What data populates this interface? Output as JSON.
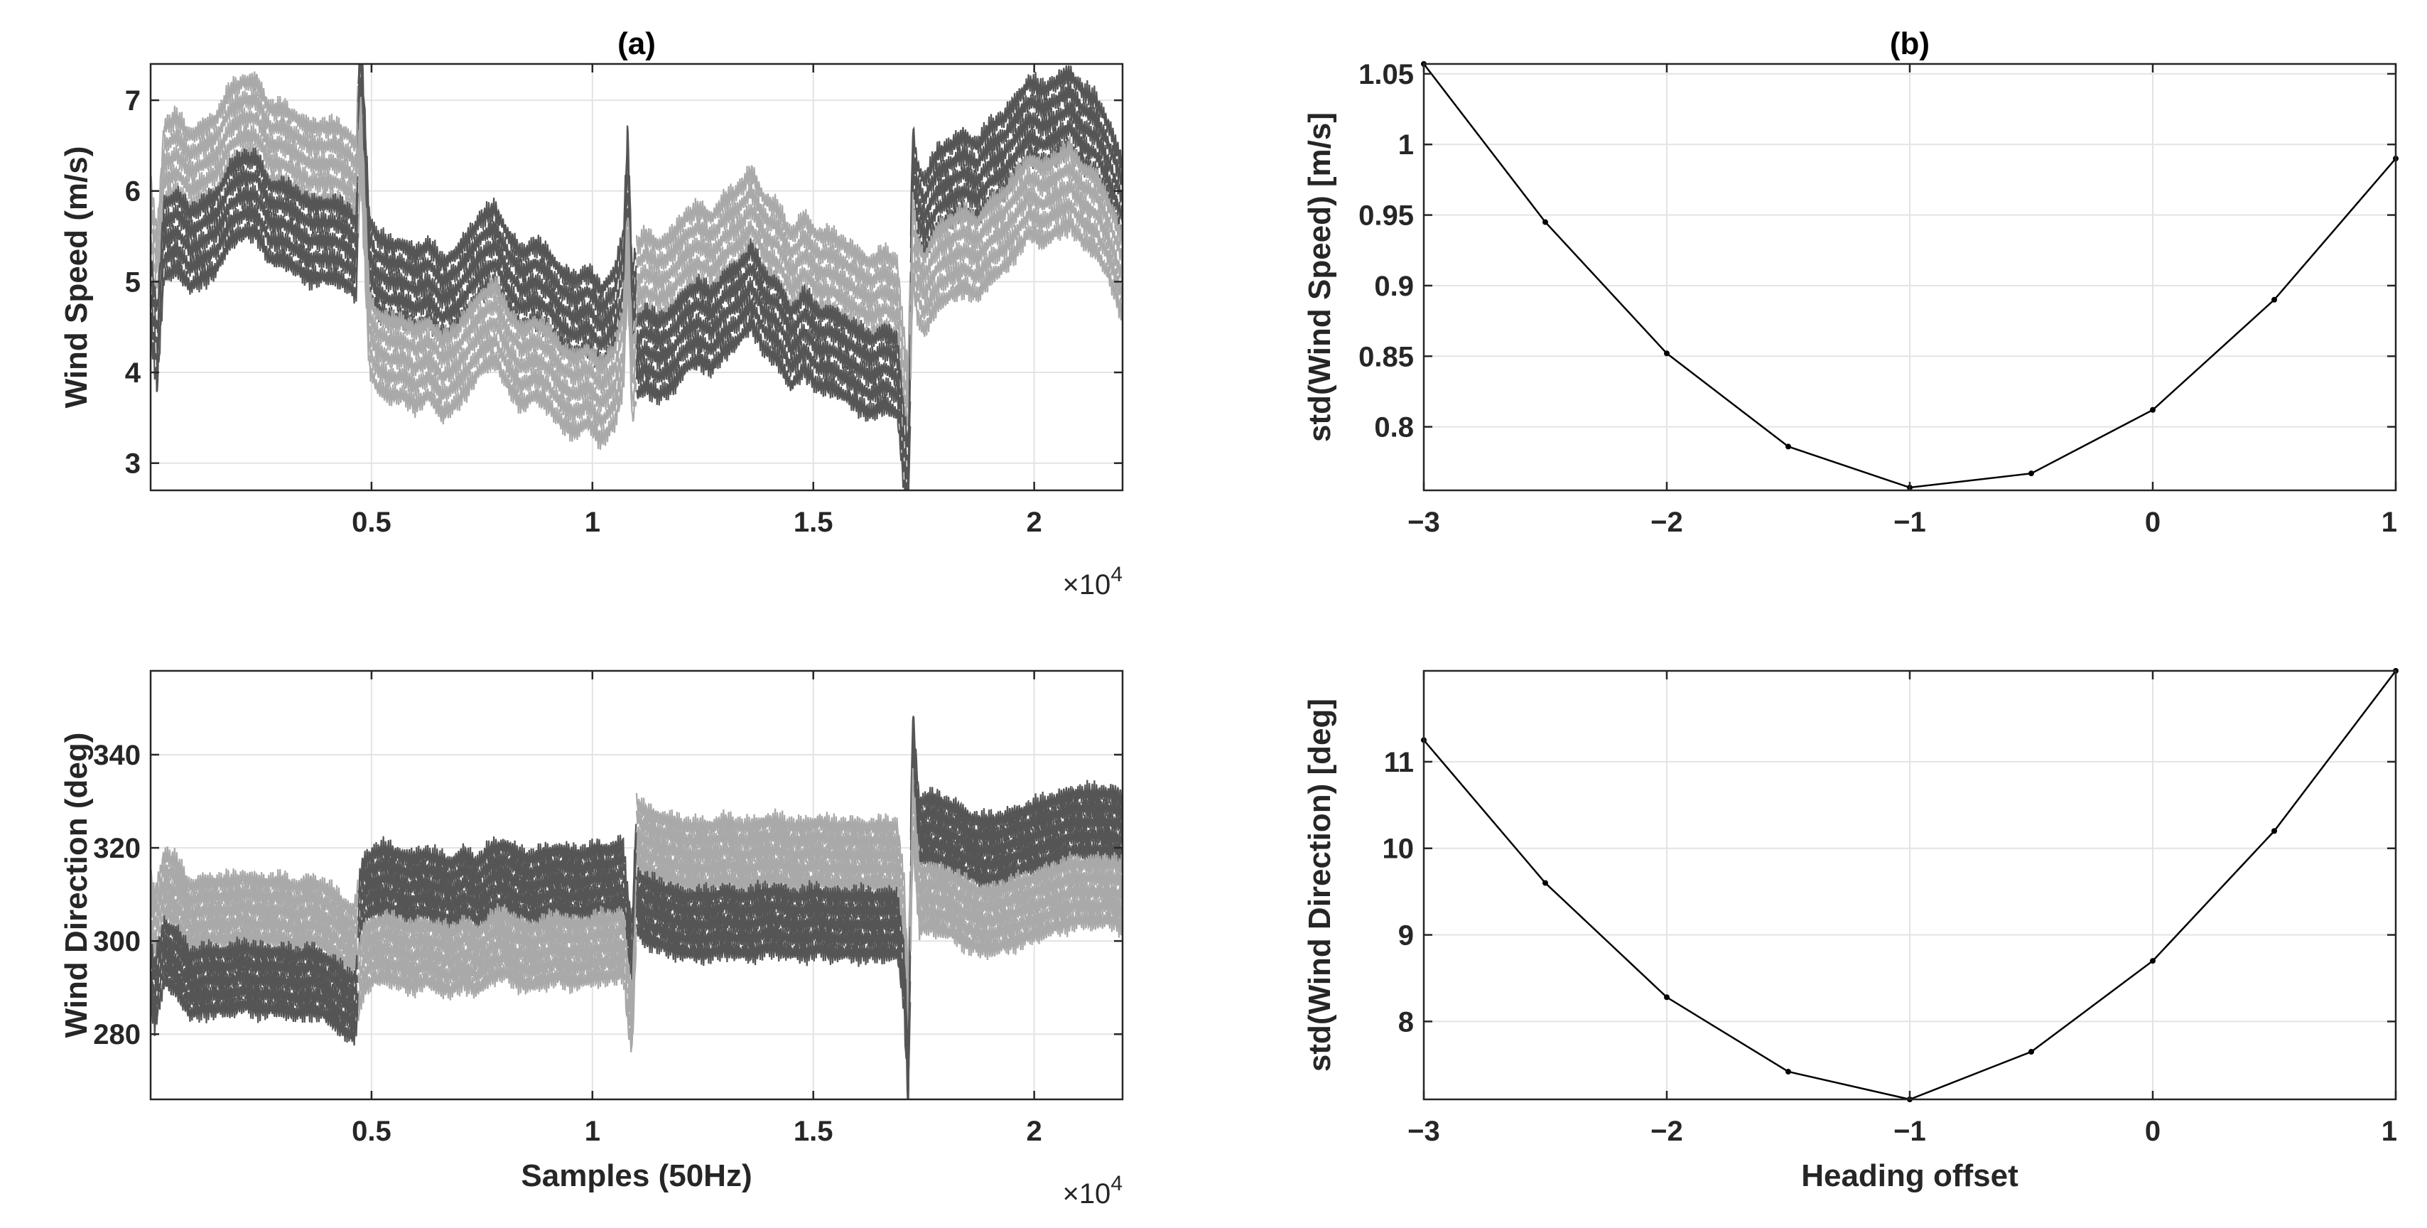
{
  "figure": {
    "panel_labels": [
      "(a)",
      "(b)"
    ]
  },
  "chart_data": [
    {
      "id": "a-top",
      "type": "line",
      "title": "(a)",
      "xlabel": "",
      "ylabel": "Wind Speed  (m/s)",
      "xlim": [
        0,
        22000
      ],
      "ylim": [
        2.7,
        7.4
      ],
      "x_ticks": [
        5000,
        10000,
        15000,
        20000
      ],
      "x_tick_labels": [
        "0.5",
        "1",
        "1.5",
        "2"
      ],
      "x_exponent_label": "×10",
      "x_exponent_power": "4",
      "y_ticks": [
        3,
        4,
        5,
        6,
        7
      ],
      "y_tick_labels": [
        "3",
        "4",
        "5",
        "6",
        "7"
      ],
      "grid": true,
      "base_curve": {
        "x": [
          0,
          150,
          300,
          600,
          900,
          1200,
          1500,
          1800,
          2100,
          2400,
          2700,
          3000,
          3300,
          3600,
          3900,
          4200,
          4500,
          4650,
          4750,
          4850,
          4950,
          5100,
          5400,
          5700,
          6000,
          6300,
          6600,
          6900,
          7200,
          7500,
          7800,
          8100,
          8400,
          8700,
          9000,
          9300,
          9600,
          9900,
          10200,
          10500,
          10700,
          10800,
          10900,
          11000,
          11200,
          11500,
          11800,
          12100,
          12400,
          12700,
          13000,
          13300,
          13600,
          13900,
          14200,
          14500,
          14800,
          15100,
          15400,
          15700,
          16000,
          16300,
          16600,
          16900,
          17050,
          17150,
          17250,
          17350,
          17500,
          17800,
          18100,
          18400,
          18700,
          19000,
          19300,
          19600,
          19900,
          20200,
          20500,
          20800,
          21100,
          21400,
          21700,
          22000
        ],
        "y": [
          5.2,
          4.6,
          5.8,
          5.9,
          5.7,
          5.8,
          5.9,
          6.2,
          6.3,
          6.3,
          6.0,
          6.0,
          5.9,
          5.8,
          5.8,
          5.8,
          5.7,
          5.6,
          7.0,
          5.9,
          4.8,
          4.6,
          4.5,
          4.5,
          4.4,
          4.5,
          4.3,
          4.4,
          4.6,
          4.8,
          4.9,
          4.6,
          4.4,
          4.5,
          4.4,
          4.2,
          4.1,
          4.2,
          4.0,
          4.2,
          4.6,
          5.8,
          4.2,
          4.5,
          4.6,
          4.5,
          4.6,
          4.8,
          4.9,
          4.8,
          5.0,
          5.1,
          5.3,
          5.0,
          4.9,
          4.6,
          4.8,
          4.6,
          4.6,
          4.5,
          4.4,
          4.3,
          4.4,
          4.3,
          3.5,
          3.1,
          5.8,
          5.4,
          5.2,
          5.5,
          5.6,
          5.7,
          5.6,
          5.8,
          5.9,
          6.1,
          6.3,
          6.2,
          6.3,
          6.4,
          6.2,
          6.1,
          5.8,
          5.4
        ],
        "offsets_light": [
          0.9,
          0.7,
          0.5,
          0.3,
          0.1
        ],
        "offsets_dark": [
          0.05,
          -0.15,
          -0.35,
          -0.55,
          -0.75
        ],
        "flip_x": [
          4700,
          11000,
          17200
        ],
        "noise_amplitude": 0.16,
        "light_color": "#a9a9a9",
        "dark_color": "#555555"
      }
    },
    {
      "id": "b-top",
      "type": "line",
      "title": "(b)",
      "xlabel": "",
      "ylabel": "std(Wind Speed)  [m/s]",
      "xlim": [
        -3,
        1
      ],
      "ylim": [
        0.755,
        1.057
      ],
      "x_ticks": [
        -3,
        -2,
        -1,
        0,
        1
      ],
      "x_tick_labels": [
        "−3",
        "−2",
        "−1",
        "0",
        "1"
      ],
      "y_ticks": [
        0.8,
        0.85,
        0.9,
        0.95,
        1,
        1.05
      ],
      "y_tick_labels": [
        "0.8",
        "0.85",
        "0.9",
        "0.95",
        "1",
        "1.05"
      ],
      "grid": true,
      "series": [
        {
          "name": "std wind speed",
          "x": [
            -3,
            -2.5,
            -2,
            -1.5,
            -1,
            -0.5,
            0,
            0.5,
            1
          ],
          "y": [
            1.057,
            0.945,
            0.852,
            0.786,
            0.757,
            0.767,
            0.812,
            0.89,
            0.99
          ],
          "color": "#000000",
          "markers": true
        }
      ]
    },
    {
      "id": "a-bottom",
      "type": "line",
      "title": "",
      "xlabel": "Samples (50Hz)",
      "ylabel": "Wind Direction  (deg)",
      "xlim": [
        0,
        22000
      ],
      "ylim": [
        266,
        358
      ],
      "x_ticks": [
        5000,
        10000,
        15000,
        20000
      ],
      "x_tick_labels": [
        "0.5",
        "1",
        "1.5",
        "2"
      ],
      "x_exponent_label": "×10",
      "x_exponent_power": "4",
      "y_ticks": [
        280,
        300,
        320,
        340
      ],
      "y_tick_labels": [
        "280",
        "300",
        "320",
        "340"
      ],
      "grid": true,
      "base_curve": {
        "x": [
          0,
          100,
          300,
          600,
          900,
          1200,
          1500,
          1800,
          2100,
          2400,
          2700,
          3000,
          3300,
          3600,
          3900,
          4200,
          4400,
          4600,
          4800,
          5000,
          5300,
          5600,
          5900,
          6200,
          6500,
          6800,
          7100,
          7400,
          7700,
          8000,
          8300,
          8600,
          8900,
          9200,
          9500,
          9800,
          10100,
          10400,
          10700,
          10800,
          10900,
          11000,
          11200,
          11500,
          11800,
          12100,
          12400,
          12700,
          13000,
          13300,
          13600,
          13900,
          14200,
          14500,
          14800,
          15100,
          15400,
          15700,
          16000,
          16300,
          16600,
          16900,
          17050,
          17150,
          17250,
          17400,
          17600,
          17900,
          18200,
          18500,
          18800,
          19100,
          19400,
          19700,
          20000,
          20300,
          20600,
          20900,
          21200,
          21500,
          21800,
          22000
        ],
        "y": [
          300,
          296,
          305,
          303,
          298,
          299,
          299,
          299,
          300,
          299,
          299,
          299,
          298,
          299,
          298,
          296,
          294,
          293,
          303,
          305,
          306,
          305,
          304,
          305,
          304,
          303,
          305,
          303,
          306,
          307,
          305,
          304,
          305,
          306,
          305,
          305,
          306,
          306,
          307,
          296,
          290,
          316,
          314,
          313,
          312,
          311,
          311,
          311,
          312,
          311,
          311,
          312,
          312,
          311,
          311,
          312,
          311,
          311,
          311,
          311,
          311,
          311,
          300,
          277,
          336,
          316,
          317,
          316,
          315,
          313,
          312,
          312,
          313,
          314,
          315,
          316,
          317,
          318,
          318,
          318,
          318,
          317
        ],
        "offsets_light": [
          13.5,
          10.5,
          7.5,
          4.5,
          1.5
        ],
        "offsets_dark": [
          -1.5,
          -4.5,
          -7.5,
          -10.5,
          -13.5
        ],
        "flip_x": [
          4700,
          11000,
          17200
        ],
        "noise_amplitude": 3.2,
        "light_color": "#a9a9a9",
        "dark_color": "#555555"
      }
    },
    {
      "id": "b-bottom",
      "type": "line",
      "title": "",
      "xlabel": "Heading offset",
      "ylabel": "std(Wind Direction)  [deg]",
      "xlim": [
        -3,
        1
      ],
      "ylim": [
        7.1,
        12.05
      ],
      "x_ticks": [
        -3,
        -2,
        -1,
        0,
        1
      ],
      "x_tick_labels": [
        "−3",
        "−2",
        "−1",
        "0",
        "1"
      ],
      "y_ticks": [
        8,
        9,
        10,
        11
      ],
      "y_tick_labels": [
        "8",
        "9",
        "10",
        "11"
      ],
      "grid": true,
      "series": [
        {
          "name": "std wind direction",
          "x": [
            -3,
            -2.5,
            -2,
            -1.5,
            -1,
            -0.5,
            0,
            0.5,
            1
          ],
          "y": [
            11.25,
            9.6,
            8.28,
            7.42,
            7.1,
            7.65,
            8.7,
            10.2,
            12.05
          ],
          "color": "#000000",
          "markers": true
        }
      ]
    }
  ]
}
